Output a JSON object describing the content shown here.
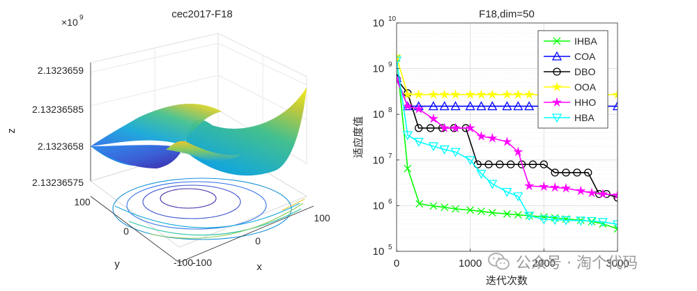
{
  "chart_data": [
    {
      "type": "surface",
      "title": "cec2017-F18",
      "xlabel": "x",
      "ylabel": "y",
      "zlabel": "z",
      "z_exponent": "×10",
      "z_exponent_power": "9",
      "z_ticks": [
        "2.13236575",
        "2.1323658",
        "2.13236585",
        "2.1323659"
      ],
      "x_ticks": [
        "-100",
        "0",
        "100"
      ],
      "y_ticks": [
        "-100",
        "0",
        "100"
      ],
      "colormap": [
        "#3e26a8",
        "#2f6ee8",
        "#11a8d9",
        "#27c2a3",
        "#8fcb5a",
        "#e9c52e",
        "#f9fb0e"
      ]
    },
    {
      "type": "line",
      "title": "F18,dim=50",
      "xlabel": "迭代次数",
      "ylabel": "适应度值",
      "y_scale": "log",
      "xlim": [
        0,
        3000
      ],
      "ylim": [
        100000,
        10000000000
      ],
      "x_ticks": [
        "0",
        "1000",
        "2000",
        "3000"
      ],
      "y_ticks": [
        {
          "base": "10",
          "power": "5"
        },
        {
          "base": "10",
          "power": "6"
        },
        {
          "base": "10",
          "power": "7"
        },
        {
          "base": "10",
          "power": "8"
        },
        {
          "base": "10",
          "power": "9"
        },
        {
          "base": "10",
          "power": "10"
        }
      ],
      "grid": true,
      "legend": "top-right",
      "series": [
        {
          "name": "IHBA",
          "color": "#00ff00",
          "marker": "x",
          "x": [
            0,
            150,
            310,
            500,
            650,
            800,
            1000,
            1150,
            1300,
            1500,
            1650,
            1800,
            2000,
            2150,
            2300,
            2500,
            2650,
            2800,
            3000
          ],
          "y": [
            1700000000,
            6500000,
            1100000,
            980000,
            920000,
            850000,
            800000,
            750000,
            700000,
            660000,
            630000,
            600000,
            570000,
            540000,
            510000,
            480000,
            450000,
            400000,
            310000
          ]
        },
        {
          "name": "COA",
          "color": "#0000ff",
          "marker": "^",
          "x": [
            0,
            150,
            300,
            500,
            650,
            800,
            1000,
            1150,
            1300,
            1500,
            1650,
            1800,
            2000,
            2150,
            2300,
            2500,
            2650,
            2800,
            3000
          ],
          "y": [
            620000000,
            150000000,
            150000000,
            150000000,
            150000000,
            150000000,
            150000000,
            150000000,
            150000000,
            150000000,
            150000000,
            150000000,
            150000000,
            150000000,
            150000000,
            150000000,
            150000000,
            150000000,
            150000000
          ]
        },
        {
          "name": "DBO",
          "color": "#000000",
          "marker": "o",
          "x": [
            0,
            150,
            300,
            460,
            620,
            780,
            940,
            1100,
            1250,
            1400,
            1550,
            1700,
            1850,
            2000,
            2150,
            2300,
            2450,
            2600,
            2750,
            2850,
            3000
          ],
          "y": [
            600000000,
            290000000,
            50000000,
            50000000,
            50000000,
            50000000,
            50000000,
            8000000,
            8000000,
            8000000,
            8000000,
            8000000,
            8000000,
            8000000,
            5300000,
            5300000,
            5300000,
            5300000,
            1800000,
            1800000,
            1500000
          ]
        },
        {
          "name": "OOA",
          "color": "#ffff00",
          "marker": "*",
          "x": [
            0,
            150,
            300,
            500,
            650,
            800,
            1000,
            1150,
            1300,
            1500,
            1650,
            1800,
            2000,
            2150,
            2300,
            2500,
            2650,
            2800,
            3000
          ],
          "y": [
            1800000000,
            270000000,
            270000000,
            270000000,
            270000000,
            270000000,
            270000000,
            270000000,
            270000000,
            270000000,
            270000000,
            270000000,
            270000000,
            270000000,
            270000000,
            270000000,
            270000000,
            270000000,
            270000000
          ]
        },
        {
          "name": "HHO",
          "color": "#ff00ff",
          "marker": "*",
          "x": [
            0,
            150,
            300,
            500,
            650,
            800,
            1000,
            1150,
            1300,
            1500,
            1650,
            1800,
            2000,
            2150,
            2300,
            2500,
            2650,
            2800,
            3000
          ],
          "y": [
            580000000,
            150000000,
            130000000,
            80000000,
            50000000,
            50000000,
            50000000,
            33000000,
            30000000,
            25000000,
            15000000,
            2700000,
            2600000,
            2500000,
            2400000,
            2100000,
            1900000,
            1800000,
            1700000
          ]
        },
        {
          "name": "HBA",
          "color": "#00ffff",
          "marker": "v",
          "x": [
            0,
            150,
            300,
            500,
            650,
            800,
            1000,
            1150,
            1300,
            1500,
            1650,
            1800,
            2000,
            2150,
            2300,
            2500,
            2650,
            2800,
            3000
          ],
          "y": [
            1500000000,
            35000000,
            25000000,
            20000000,
            17000000,
            15000000,
            10000000,
            5000000,
            3000000,
            2000000,
            1600000,
            600000,
            500000,
            490000,
            480000,
            470000,
            460000,
            440000,
            390000
          ]
        }
      ]
    }
  ],
  "watermark": {
    "text": "公众号 · 淘个代码",
    "icon": "wechat-icon"
  }
}
